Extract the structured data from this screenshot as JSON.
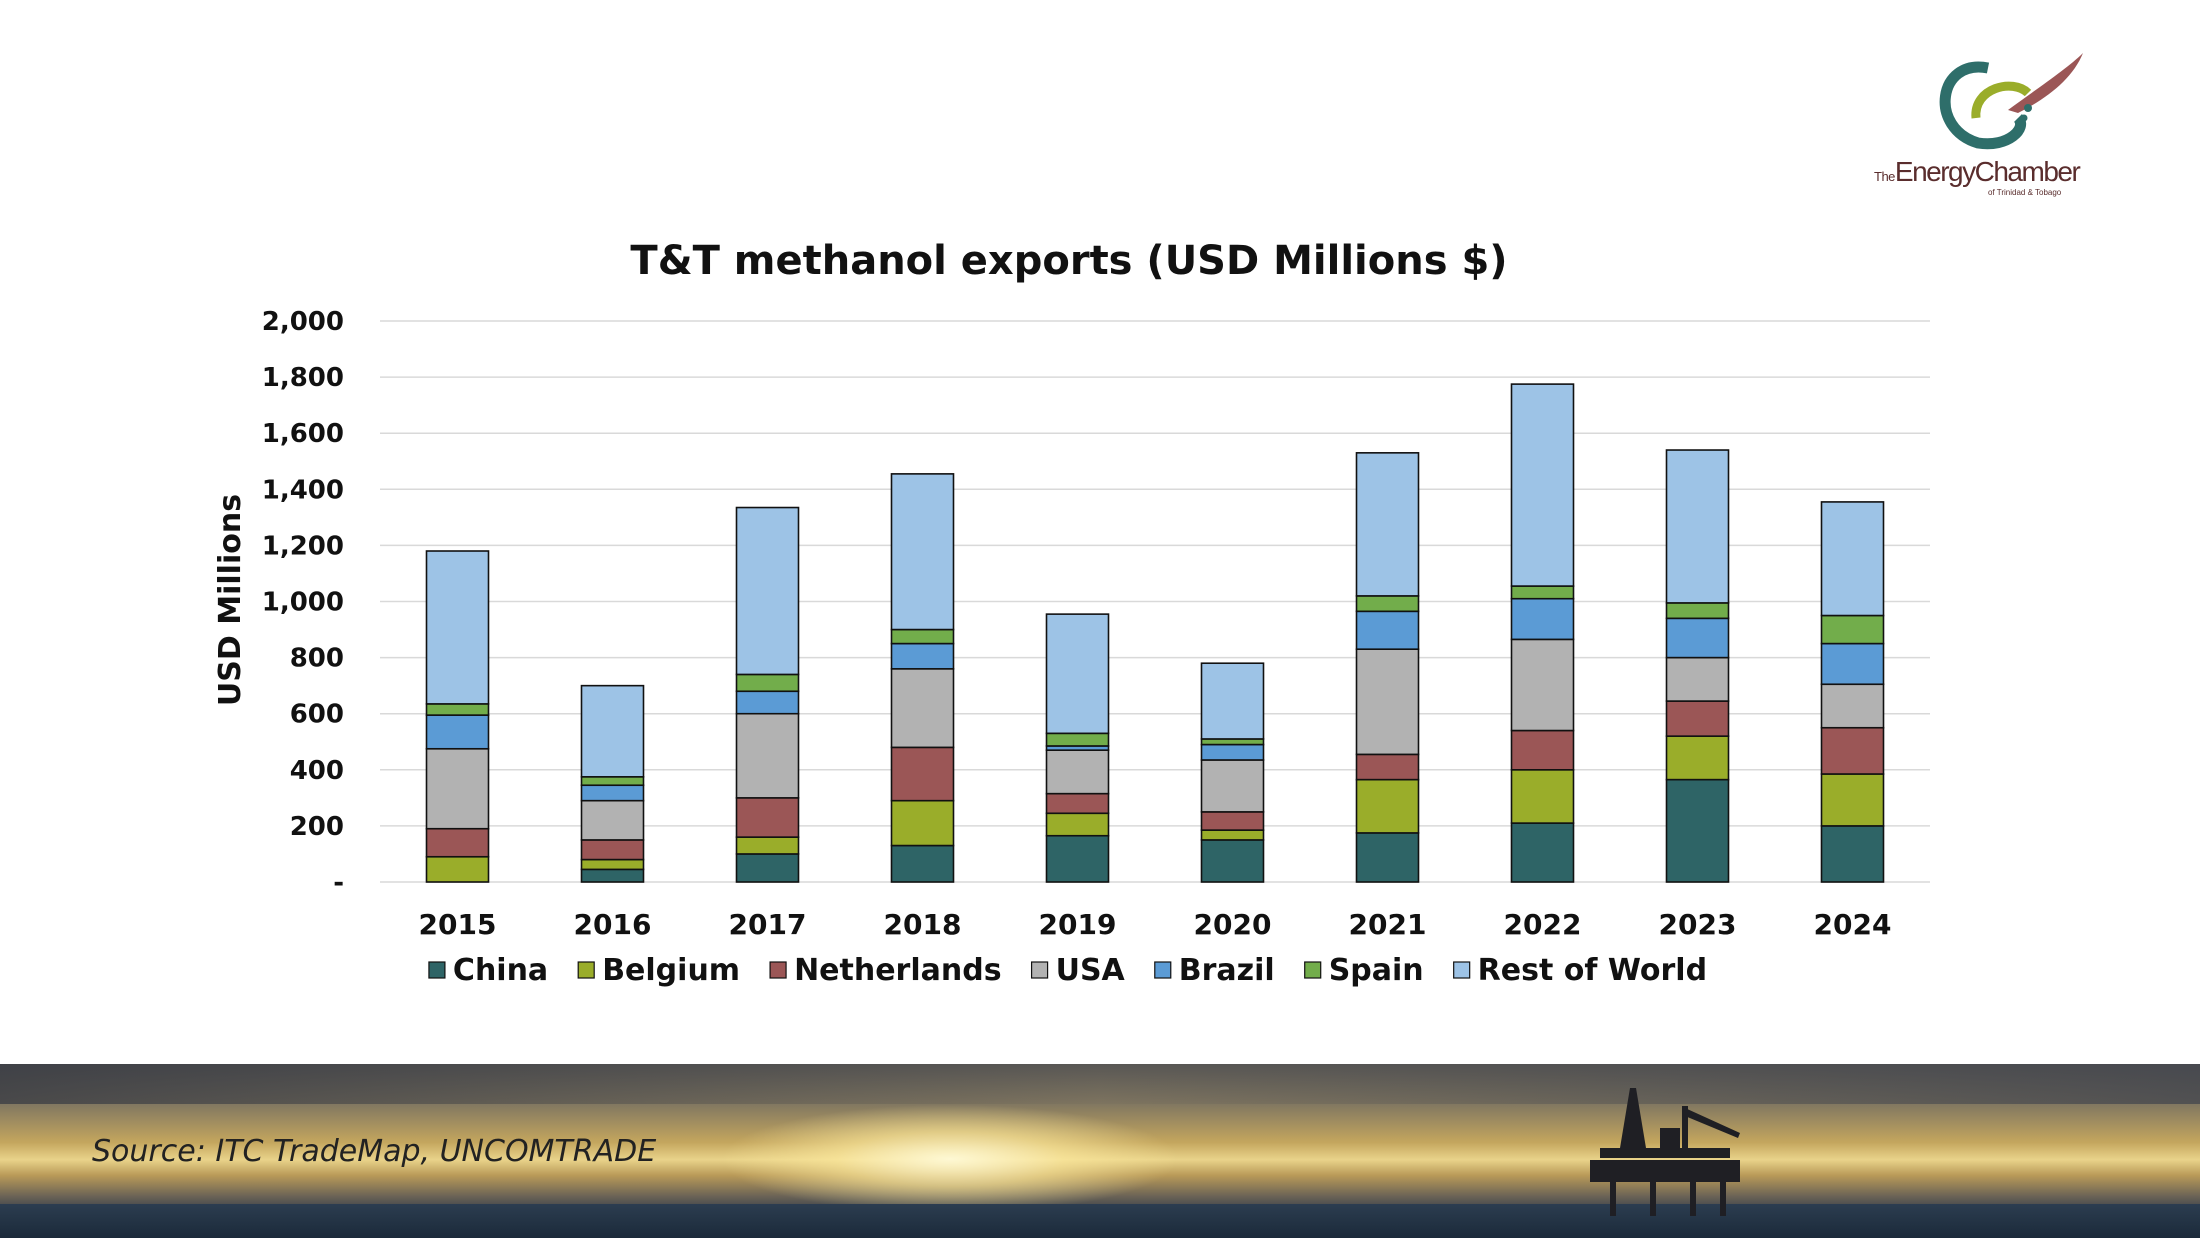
{
  "brand": {
    "logo_prefix": "The",
    "logo_name": "EnergyChamber",
    "logo_sub": "of Trinidad & Tobago"
  },
  "source": "Source: ITC TradeMap, UNCOMTRADE",
  "colors": {
    "China": "#2e6466",
    "Belgium": "#9aad2a",
    "Netherlands": "#9b5656",
    "USA": "#b2b2b2",
    "Brazil": "#5b9bd5",
    "Spain": "#72ad4b",
    "Rest of World": "#9dc3e6"
  },
  "chart_data": {
    "type": "bar",
    "stacked": true,
    "title": "T&T methanol exports (USD Millions $)",
    "xlabel": "",
    "ylabel": "USD Millions",
    "ylim": [
      0,
      2000
    ],
    "yticks": [
      0,
      200,
      400,
      600,
      800,
      1000,
      1200,
      1400,
      1600,
      1800,
      2000
    ],
    "ytick_labels": [
      "-",
      "200",
      "400",
      "600",
      "800",
      "1,000",
      "1,200",
      "1,400",
      "1,600",
      "1,800",
      "2,000"
    ],
    "grid": true,
    "legend_position": "bottom",
    "categories": [
      "2015",
      "2016",
      "2017",
      "2018",
      "2019",
      "2020",
      "2021",
      "2022",
      "2023",
      "2024"
    ],
    "series": [
      {
        "name": "China",
        "values": [
          0,
          45,
          100,
          130,
          165,
          150,
          175,
          210,
          365,
          200
        ]
      },
      {
        "name": "Belgium",
        "values": [
          90,
          35,
          60,
          160,
          80,
          35,
          190,
          190,
          155,
          185
        ]
      },
      {
        "name": "Netherlands",
        "values": [
          100,
          70,
          140,
          190,
          70,
          65,
          90,
          140,
          125,
          165
        ]
      },
      {
        "name": "USA",
        "values": [
          285,
          140,
          300,
          280,
          155,
          185,
          375,
          325,
          155,
          155
        ]
      },
      {
        "name": "Brazil",
        "values": [
          120,
          55,
          80,
          90,
          15,
          55,
          135,
          145,
          140,
          145
        ]
      },
      {
        "name": "Spain",
        "values": [
          40,
          30,
          60,
          50,
          45,
          20,
          55,
          45,
          55,
          100
        ]
      },
      {
        "name": "Rest of World",
        "values": [
          545,
          325,
          595,
          555,
          425,
          270,
          510,
          720,
          545,
          405
        ]
      }
    ]
  }
}
